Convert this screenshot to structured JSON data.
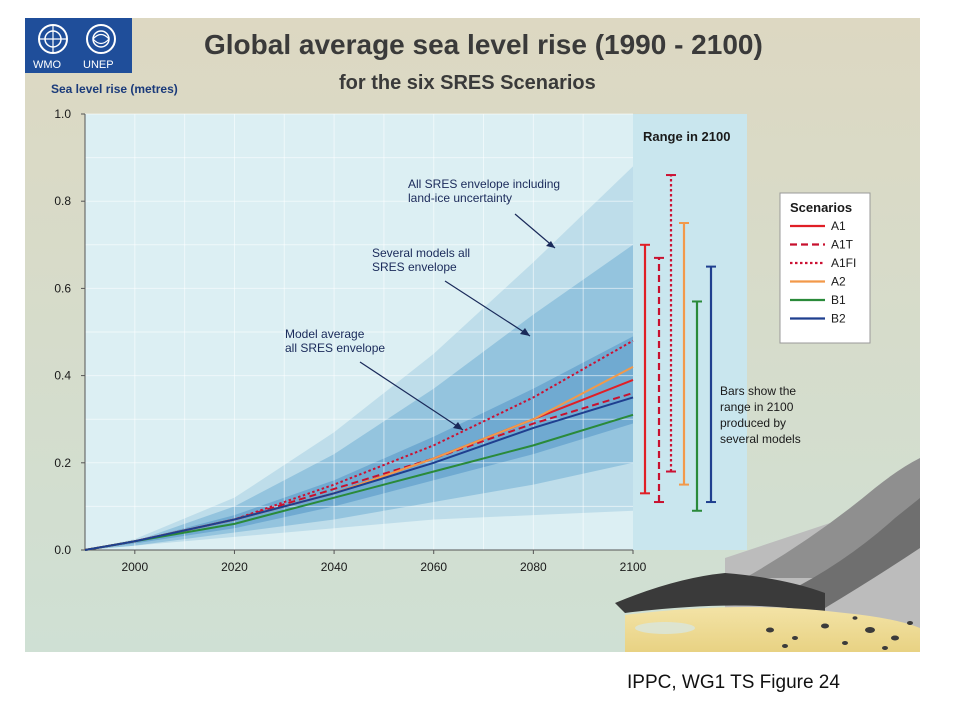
{
  "caption": "IPPC, WG1 TS Figure 24",
  "logos": {
    "wmo": "WMO",
    "unep": "UNEP"
  },
  "annotations": {
    "all_sres_land_ice": [
      "All SRES envelope including",
      "land-ice uncertainty"
    ],
    "several_models": [
      "Several models all",
      "SRES envelope"
    ],
    "model_average": [
      "Model average",
      "all SRES envelope"
    ],
    "bars_note": [
      "Bars show  the",
      "range in 2100",
      "produced by",
      "several models"
    ]
  },
  "range_panel_title": "Range in 2100",
  "legend_title": "Scenarios",
  "colors": {
    "A1": "#e01f26",
    "A1T": "#c8102e",
    "A1FI": "#cc1133",
    "A2": "#f2994a",
    "B1": "#2a8a3a",
    "B2": "#1f3f8f",
    "plot_bg": "#dceff3",
    "envelope_outer": "#b9d9e8",
    "envelope_mid": "#8dbfdc",
    "envelope_inner": "#6aa6cf"
  },
  "chart_data": {
    "type": "line",
    "title": "Global average sea level rise (1990 - 2100)",
    "subtitle": "for the six SRES Scenarios",
    "ylabel": "Sea level rise (metres)",
    "xlabel": "",
    "xlim": [
      1990,
      2100
    ],
    "ylim": [
      0.0,
      1.0
    ],
    "x_ticks": [
      2000,
      2020,
      2040,
      2060,
      2080,
      2100
    ],
    "y_ticks": [
      0.0,
      0.2,
      0.4,
      0.6,
      0.8,
      1.0
    ],
    "y_tick_labels": [
      "0.0",
      "0.2",
      "0.4",
      "0.6",
      "0.8",
      "1.0"
    ],
    "grid": true,
    "legend_placement": "right",
    "x": [
      1990,
      2000,
      2020,
      2040,
      2060,
      2080,
      2100
    ],
    "series": [
      {
        "name": "A1",
        "style": "solid",
        "values": [
          0,
          0.02,
          0.07,
          0.13,
          0.21,
          0.3,
          0.39
        ]
      },
      {
        "name": "A1T",
        "style": "dashed",
        "values": [
          0,
          0.02,
          0.07,
          0.14,
          0.21,
          0.29,
          0.36
        ]
      },
      {
        "name": "A1FI",
        "style": "dotted",
        "values": [
          0,
          0.02,
          0.07,
          0.15,
          0.24,
          0.35,
          0.48
        ]
      },
      {
        "name": "A2",
        "style": "solid",
        "values": [
          0,
          0.02,
          0.07,
          0.13,
          0.21,
          0.3,
          0.42
        ]
      },
      {
        "name": "B1",
        "style": "solid",
        "values": [
          0,
          0.02,
          0.06,
          0.12,
          0.18,
          0.24,
          0.31
        ]
      },
      {
        "name": "B2",
        "style": "solid",
        "values": [
          0,
          0.02,
          0.07,
          0.13,
          0.2,
          0.28,
          0.35
        ]
      }
    ],
    "envelopes": [
      {
        "name": "All SRES envelope including land-ice uncertainty",
        "upper": [
          0,
          0.025,
          0.12,
          0.27,
          0.45,
          0.66,
          0.88
        ],
        "lower": [
          0,
          0.01,
          0.03,
          0.05,
          0.07,
          0.08,
          0.09
        ]
      },
      {
        "name": "Several models all SRES envelope",
        "upper": [
          0,
          0.02,
          0.1,
          0.22,
          0.37,
          0.54,
          0.7
        ],
        "lower": [
          0,
          0.01,
          0.04,
          0.07,
          0.11,
          0.15,
          0.2
        ]
      },
      {
        "name": "Model average all SRES envelope",
        "upper": [
          0,
          0.02,
          0.08,
          0.16,
          0.26,
          0.37,
          0.49
        ],
        "lower": [
          0,
          0.015,
          0.05,
          0.1,
          0.16,
          0.22,
          0.29
        ]
      }
    ],
    "range_bars_2100": [
      {
        "name": "A1",
        "style": "solid",
        "low": 0.13,
        "high": 0.7
      },
      {
        "name": "A1T",
        "style": "dashed",
        "low": 0.11,
        "high": 0.67
      },
      {
        "name": "A1FI",
        "style": "dotted",
        "low": 0.18,
        "high": 0.86
      },
      {
        "name": "A2",
        "style": "solid",
        "low": 0.15,
        "high": 0.75
      },
      {
        "name": "B1",
        "style": "solid",
        "low": 0.09,
        "high": 0.57
      },
      {
        "name": "B2",
        "style": "solid",
        "low": 0.11,
        "high": 0.65
      }
    ]
  }
}
